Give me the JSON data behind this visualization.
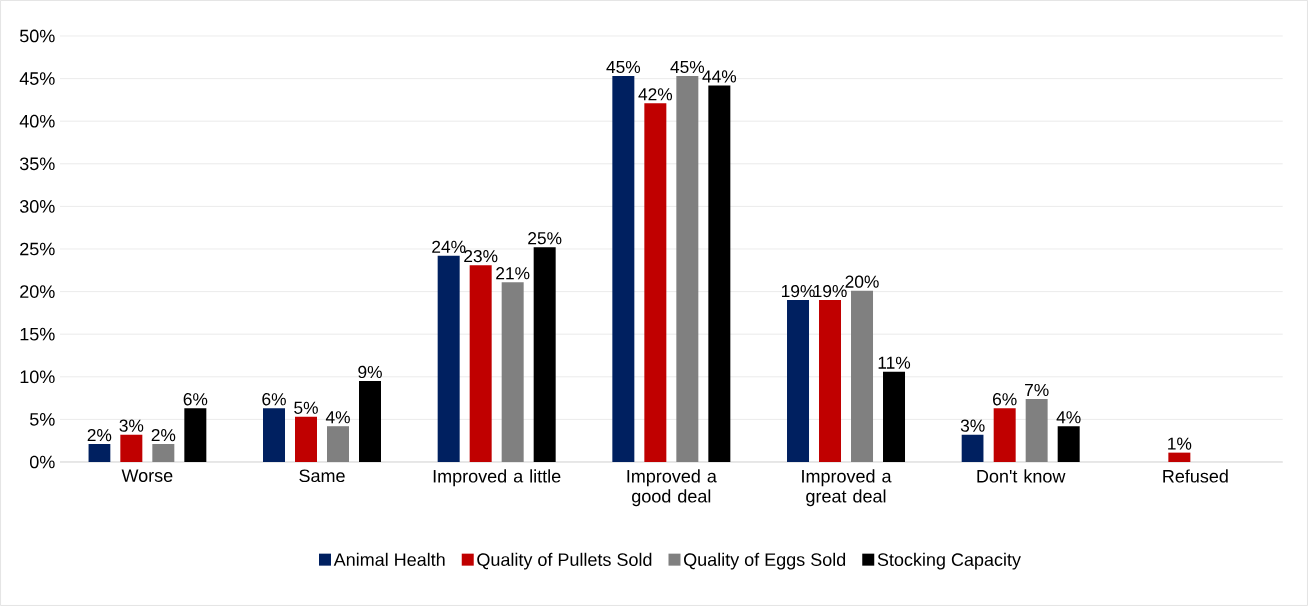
{
  "chart_data": {
    "type": "bar",
    "categories": [
      "Worse",
      "Same",
      "Improved a little",
      "Improved a good deal",
      "Improved a great deal",
      "Don't know",
      "Refused"
    ],
    "series": [
      {
        "name": "Animal Health",
        "color": "#002060",
        "values": [
          2.1,
          6.3,
          24.2,
          45.3,
          19.0,
          3.2,
          null
        ],
        "value_labels": [
          "2%",
          "6%",
          "24%",
          "45%",
          "19%",
          "3%",
          null
        ]
      },
      {
        "name": "Quality of Pullets Sold",
        "color": "#c00000",
        "values": [
          3.2,
          5.3,
          23.1,
          42.1,
          19.0,
          6.3,
          1.1
        ],
        "value_labels": [
          "3%",
          "5%",
          "23%",
          "42%",
          "19%",
          "6%",
          "1%"
        ]
      },
      {
        "name": "Quality of Eggs Sold",
        "color": "#808080",
        "values": [
          2.1,
          4.2,
          21.1,
          45.3,
          20.1,
          7.4,
          null
        ],
        "value_labels": [
          "2%",
          "4%",
          "21%",
          "45%",
          "20%",
          "7%",
          null
        ]
      },
      {
        "name": "Stocking Capacity",
        "color": "#000000",
        "values": [
          6.3,
          9.5,
          25.2,
          44.2,
          10.6,
          4.2,
          null
        ],
        "value_labels": [
          "6%",
          "9%",
          "25%",
          "44%",
          "11%",
          "4%",
          null
        ]
      }
    ],
    "ylim": [
      0,
      50
    ],
    "yticks": [
      {
        "value": 0,
        "label": "0%"
      },
      {
        "value": 5,
        "label": "5%"
      },
      {
        "value": 10,
        "label": "10%"
      },
      {
        "value": 15,
        "label": "15%"
      },
      {
        "value": 20,
        "label": "20%"
      },
      {
        "value": 25,
        "label": "25%"
      },
      {
        "value": 30,
        "label": "30%"
      },
      {
        "value": 35,
        "label": "35%"
      },
      {
        "value": 40,
        "label": "40%"
      },
      {
        "value": 45,
        "label": "45%"
      },
      {
        "value": 50,
        "label": "50%"
      }
    ],
    "grid": "y",
    "legend": "bottom"
  }
}
